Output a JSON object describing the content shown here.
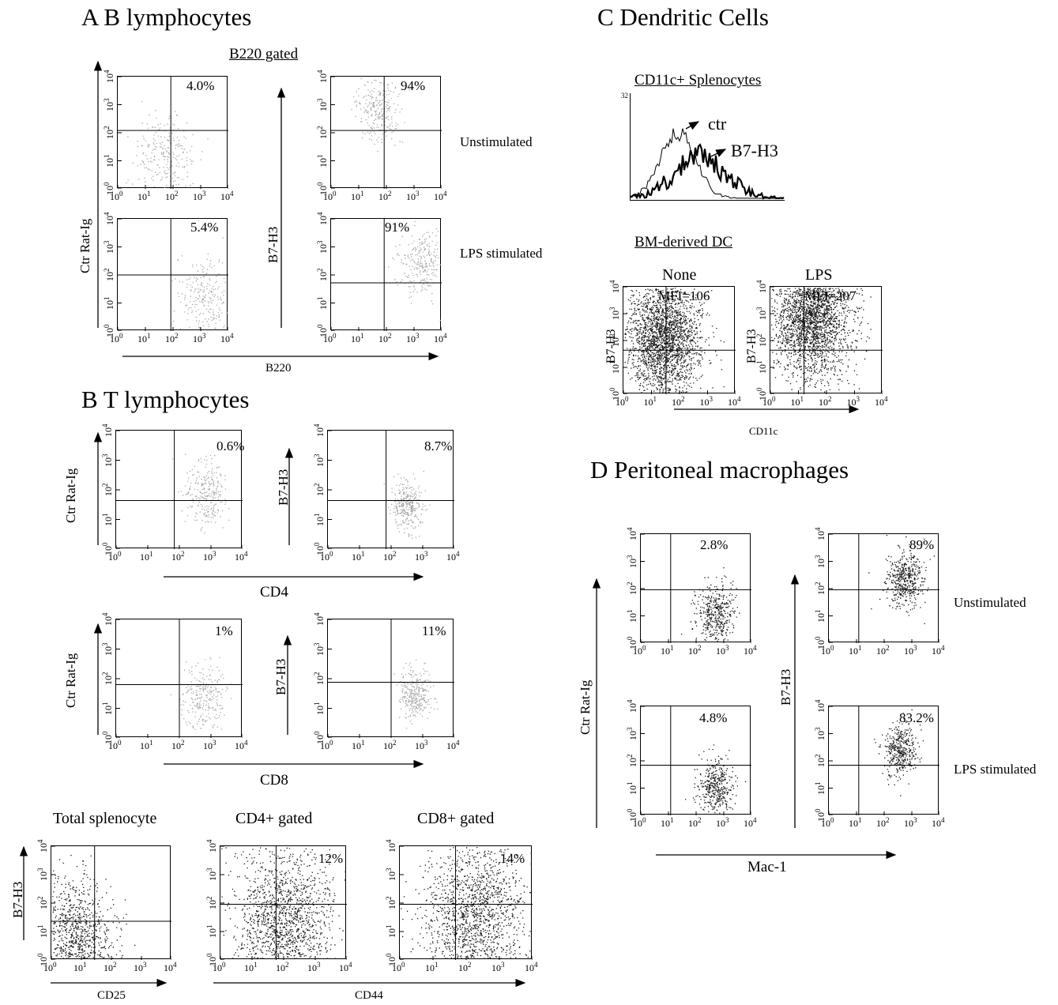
{
  "figure": {
    "panel_a": {
      "title": "A  B lymphocytes",
      "subtitle": "B220 gated",
      "row_labels": [
        "Unstimulated",
        "LPS stimulated"
      ],
      "y_label_left": "Ctr Rat-Ig",
      "y_label_right": "B7-H3",
      "x_label": "B220"
    },
    "panel_b": {
      "title": "B  T lymphocytes",
      "cd4_x_label": "CD4",
      "cd8_x_label": "CD8",
      "y_label_ctr": "Ctr Rat-Ig",
      "y_label_b7": "B7-H3",
      "bottom_titles": [
        "Total splenocyte",
        "CD4+ gated",
        "CD8+ gated"
      ],
      "bottom_y_label": "B7-H3",
      "bottom_x_label_1": "CD25",
      "bottom_x_label_2": "CD44"
    },
    "panel_c": {
      "title": "C  Dendritic Cells",
      "subtitle_1": "CD11c+ Splenocytes",
      "hist_labels": [
        "ctr",
        "B7-H3"
      ],
      "hist_y_max": "32",
      "subtitle_2": "BM-derived DC",
      "col_titles": [
        "None",
        "LPS"
      ],
      "mfi": [
        "MFI=106",
        "MFI=207"
      ],
      "y_label": "B7-H3",
      "x_label": "CD11c"
    },
    "panel_d": {
      "title": "D  Peritoneal macrophages",
      "row_labels": [
        "Unstimulated",
        "LPS stimulated"
      ],
      "y_label_left": "Ctr Rat-Ig",
      "y_label_right": "B7-H3",
      "x_label": "Mac-1"
    }
  },
  "chart_data": [
    {
      "type": "scatter",
      "panel": "A",
      "label": "Ctr Rat-Ig vs B220, Unstimulated",
      "quadrant_percent": "4.0%",
      "x": [
        10.0,
        100000.0
      ],
      "y": [
        10.0,
        100000.0
      ]
    },
    {
      "type": "scatter",
      "panel": "A",
      "label": "B7-H3 vs B220, Unstimulated",
      "quadrant_percent": "94%"
    },
    {
      "type": "scatter",
      "panel": "A",
      "label": "Ctr Rat-Ig vs B220, LPS stimulated",
      "quadrant_percent": "5.4%"
    },
    {
      "type": "scatter",
      "panel": "A",
      "label": "B7-H3 vs B220, LPS stimulated",
      "quadrant_percent": "91%"
    },
    {
      "type": "scatter",
      "panel": "B",
      "label": "Ctr Rat-Ig vs CD4",
      "quadrant_percent": "0.6%"
    },
    {
      "type": "scatter",
      "panel": "B",
      "label": "B7-H3 vs CD4",
      "quadrant_percent": "8.7%"
    },
    {
      "type": "scatter",
      "panel": "B",
      "label": "Ctr Rat-Ig vs CD8",
      "quadrant_percent": "1%"
    },
    {
      "type": "scatter",
      "panel": "B",
      "label": "B7-H3 vs CD8",
      "quadrant_percent": "11%"
    },
    {
      "type": "scatter",
      "panel": "B",
      "label": "Total splenocyte B7-H3 vs CD25",
      "quadrant_percent": ""
    },
    {
      "type": "scatter",
      "panel": "B",
      "label": "CD4+ gated vs CD44",
      "quadrant_percent": "12%"
    },
    {
      "type": "scatter",
      "panel": "B",
      "label": "CD8+ gated vs CD44",
      "quadrant_percent": "14%"
    },
    {
      "type": "line",
      "panel": "C",
      "label": "CD11c+ Splenocytes histogram",
      "series": [
        {
          "name": "ctr"
        },
        {
          "name": "B7-H3"
        }
      ]
    },
    {
      "type": "scatter",
      "panel": "C",
      "label": "BM-derived DC None",
      "mfi": "MFI=106"
    },
    {
      "type": "scatter",
      "panel": "C",
      "label": "BM-derived DC LPS",
      "mfi": "MFI=207"
    },
    {
      "type": "scatter",
      "panel": "D",
      "label": "Ctr Rat-Ig vs Mac-1 Unstimulated",
      "quadrant_percent": "2.8%"
    },
    {
      "type": "scatter",
      "panel": "D",
      "label": "B7-H3 vs Mac-1 Unstimulated",
      "quadrant_percent": "89%"
    },
    {
      "type": "scatter",
      "panel": "D",
      "label": "Ctr Rat-Ig vs Mac-1 LPS stimulated",
      "quadrant_percent": "4.8%"
    },
    {
      "type": "scatter",
      "panel": "D",
      "label": "B7-H3 vs Mac-1 LPS stimulated",
      "quadrant_percent": "83.2%"
    }
  ],
  "tick_labels": [
    "10",
    "0",
    "1",
    "2",
    "3",
    "4"
  ],
  "colors": {
    "dots_light": "#a8a8a8",
    "dots_dark": "#1a1a1a"
  }
}
